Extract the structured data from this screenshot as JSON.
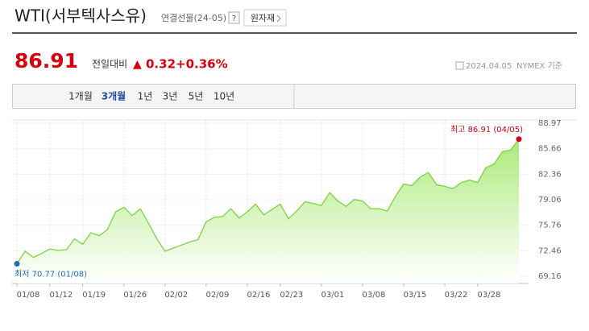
{
  "header": {
    "title": "WTI(서부텍사스유)",
    "subtitle": "연결선물(24-05)",
    "help": "?",
    "button": "원자재"
  },
  "quote": {
    "price": "86.91",
    "change_label": "전일대비",
    "arrow": "▲",
    "change": "0.32",
    "change_pct": "+0.36%",
    "date": "2024.04.05",
    "source": "NYMEX 기준"
  },
  "tabs": [
    "1개월",
    "3개월",
    "1년",
    "3년",
    "5년",
    "10년"
  ],
  "active_tab": 1,
  "chart_data": {
    "type": "area",
    "categories": [
      "01/08",
      null,
      null,
      null,
      "01/12",
      null,
      null,
      null,
      "01/19",
      null,
      null,
      null,
      null,
      "01/26",
      null,
      null,
      null,
      null,
      "02/02",
      null,
      null,
      null,
      null,
      "02/09",
      null,
      null,
      null,
      null,
      "02/16",
      null,
      null,
      null,
      "02/23",
      null,
      null,
      null,
      null,
      "03/01",
      null,
      null,
      null,
      null,
      "03/08",
      null,
      null,
      null,
      null,
      "03/15",
      null,
      null,
      null,
      null,
      "03/22",
      null,
      null,
      null,
      "03/28",
      null,
      null,
      null,
      null,
      null
    ],
    "values": [
      70.77,
      72.4,
      71.6,
      72.1,
      72.7,
      72.5,
      72.6,
      74.0,
      73.3,
      74.8,
      74.4,
      75.2,
      77.5,
      78.1,
      77.0,
      77.9,
      76.0,
      74.0,
      72.4,
      72.8,
      73.2,
      73.6,
      73.9,
      76.2,
      76.8,
      76.9,
      77.9,
      76.7,
      77.5,
      78.5,
      77.1,
      77.8,
      78.5,
      76.6,
      77.6,
      78.8,
      78.6,
      78.3,
      80.0,
      78.9,
      78.2,
      79.1,
      78.9,
      77.9,
      77.9,
      77.6,
      79.5,
      81.1,
      80.9,
      82.0,
      82.6,
      81.0,
      80.8,
      80.5,
      81.3,
      81.6,
      81.3,
      83.2,
      83.7,
      85.3,
      85.5,
      86.91
    ],
    "color": "#7dd43f",
    "ylim": [
      69.16,
      88.97
    ],
    "yticks": [
      88.97,
      85.66,
      82.36,
      79.06,
      75.76,
      72.46,
      69.16
    ],
    "high_label": "최고 86.91 (04/05)",
    "high_color": "#d8000c",
    "low_label": "최저 70.77 (01/08)",
    "low_color": "#1f6bc4",
    "grid": true
  }
}
